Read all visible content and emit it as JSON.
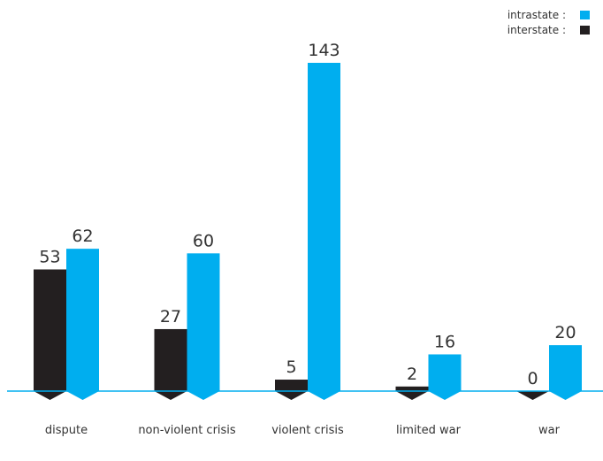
{
  "chart_data": {
    "type": "bar",
    "categories": [
      "dispute",
      "non-violent crisis",
      "violent crisis",
      "limited war",
      "war"
    ],
    "series": [
      {
        "name": "interstate",
        "values": [
          53,
          27,
          5,
          2,
          0
        ],
        "color": "#231f20"
      },
      {
        "name": "intrastate",
        "values": [
          62,
          60,
          143,
          16,
          20
        ],
        "color": "#00aeef"
      }
    ],
    "title": "",
    "xlabel": "",
    "ylabel": "",
    "ylim": [
      0,
      143
    ],
    "grid": false,
    "legend": {
      "placement": "top-right",
      "entries": [
        {
          "label": "intrastate :",
          "color": "#00aeef"
        },
        {
          "label": "interstate :",
          "color": "#231f20"
        }
      ]
    },
    "baseline_color": "#00aeef"
  }
}
